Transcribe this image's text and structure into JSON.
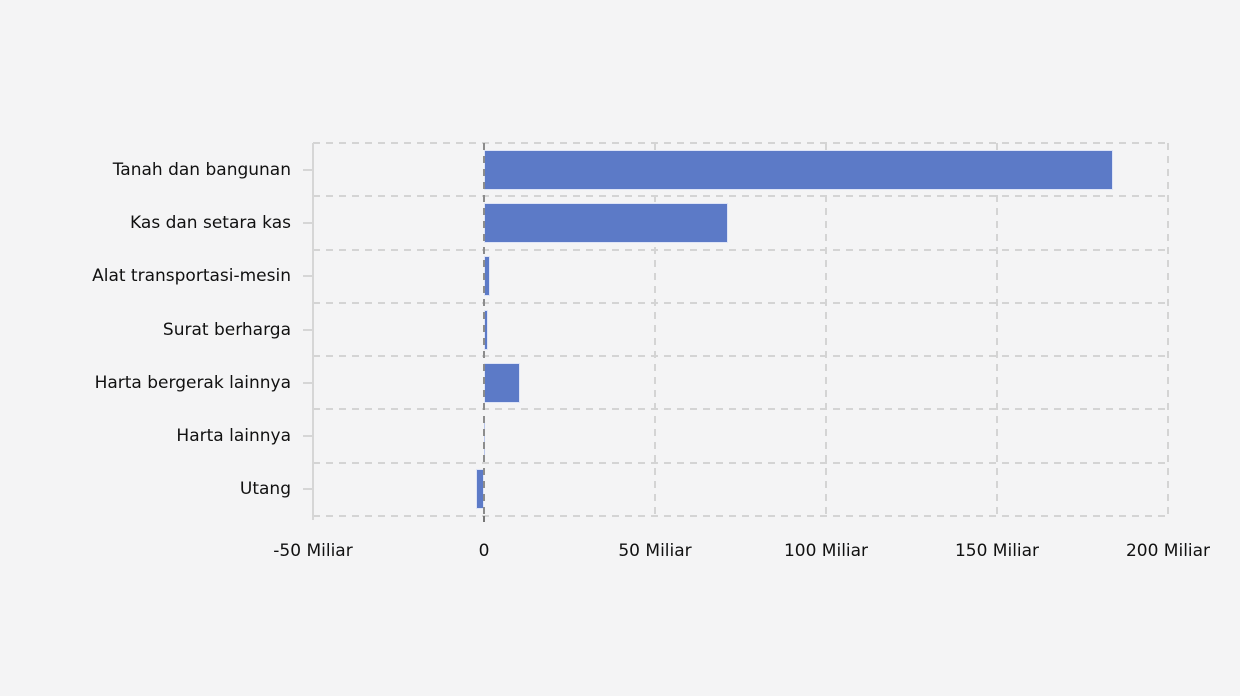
{
  "page": {
    "background": "#f4f4f5"
  },
  "chart_data": {
    "type": "bar",
    "orientation": "horizontal",
    "title": "",
    "xlabel": "",
    "ylabel": "",
    "unit": "Miliar",
    "categories": [
      "Tanah dan bangunan",
      "Kas dan setara kas",
      "Alat transportasi-mesin",
      "Surat berharga",
      "Harta bergerak lainnya",
      "Harta lainnya",
      "Utang"
    ],
    "values": [
      184,
      71.3,
      1.8,
      1.2,
      10.5,
      0.1,
      -2.3
    ],
    "xlim": [
      -50,
      200
    ],
    "x_ticks": [
      {
        "value": -50,
        "label": "-50 Miliar"
      },
      {
        "value": 0,
        "label": "0"
      },
      {
        "value": 50,
        "label": "50 Miliar"
      },
      {
        "value": 100,
        "label": "100 Miliar"
      },
      {
        "value": 150,
        "label": "150 Miliar"
      },
      {
        "value": 200,
        "label": "200 Miliar"
      }
    ],
    "grid": "dashed, horizontal lines at row boundaries and vertical lines at ticks; zero line darker and drawn over bars",
    "legend": "none",
    "colors": {
      "bar": "#5c7ac7",
      "bar_border": "#dee4f6",
      "grid": "#d4d4d4",
      "zero_line": "#8c8c8c",
      "axis": "#d6d6d6",
      "text": "#111111",
      "background": "#f4f4f5"
    }
  }
}
